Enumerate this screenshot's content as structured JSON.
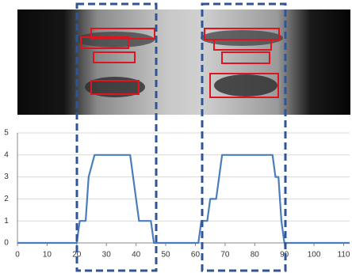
{
  "chart_data": {
    "type": "line",
    "series": [
      {
        "color": "#4a7ebb",
        "x": [
          0,
          20,
          21,
          23,
          24,
          26,
          38,
          40,
          41,
          45,
          46,
          61,
          62,
          64,
          65,
          67,
          69,
          86,
          87,
          88,
          89,
          90,
          112
        ],
        "values": [
          0,
          0,
          1,
          1,
          3,
          4,
          4,
          2,
          1,
          1,
          0,
          0,
          1,
          1,
          2,
          2,
          4,
          4,
          3,
          3,
          1,
          0,
          0
        ]
      }
    ],
    "xlim": [
      0,
      112
    ],
    "xticks": [
      0,
      10,
      20,
      30,
      40,
      50,
      60,
      70,
      80,
      90,
      100,
      110
    ],
    "ylim": [
      0,
      5
    ],
    "yticks": [
      0,
      1,
      2,
      3,
      4,
      5
    ],
    "grid": true
  }
}
